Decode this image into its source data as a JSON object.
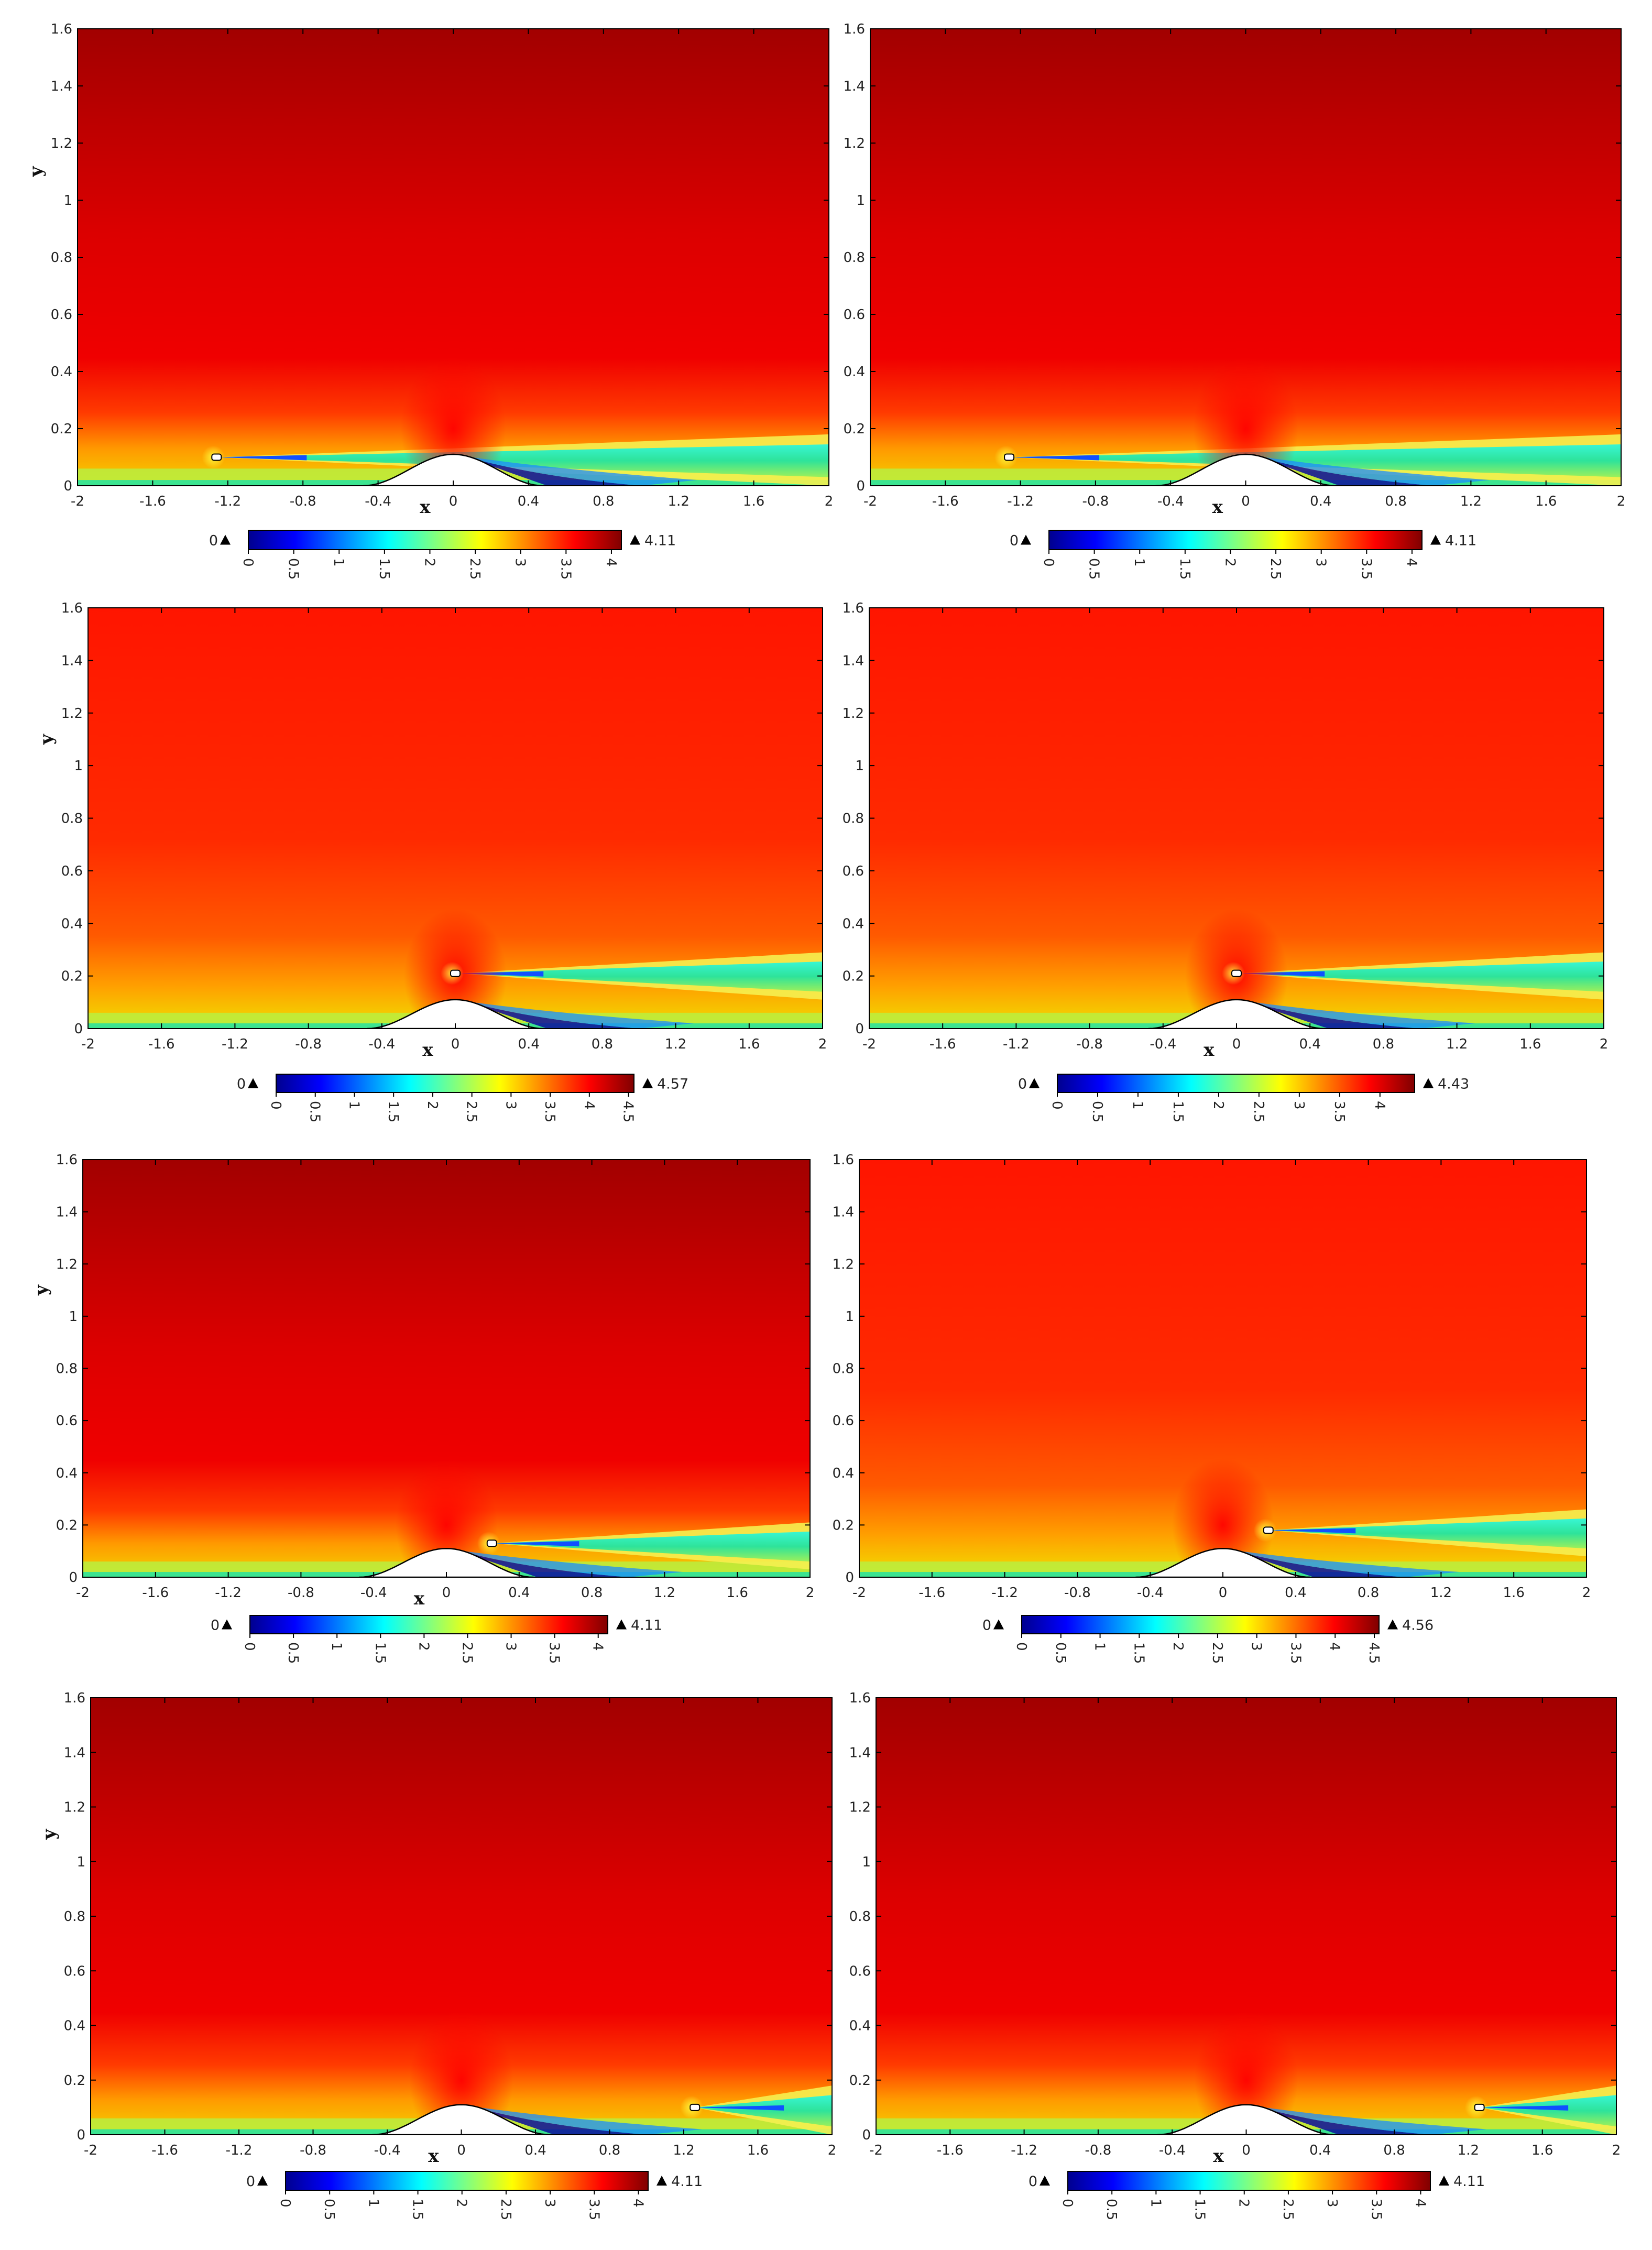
{
  "chart_data": [
    {
      "type": "heatmap",
      "xlim": [
        -2,
        2
      ],
      "ylim": [
        0,
        1.6
      ],
      "xticks": [
        "-2",
        "-1.6",
        "-1.2",
        "-0.8",
        "-0.4",
        "0",
        "0.4",
        "0.8",
        "1.2",
        "1.6",
        "2"
      ],
      "yticks": [
        "0",
        "0.2",
        "0.4",
        "0.6",
        "0.8",
        "1",
        "1.2",
        "1.4",
        "1.6"
      ],
      "xlabel": "x",
      "ylabel": "y",
      "min_label": "0",
      "max_label": "4.11",
      "colorbar_ticks": [
        "0",
        "0.5",
        "1",
        "1.5",
        "2",
        "2.5",
        "3",
        "3.5",
        "4"
      ],
      "bump_height": 0.11,
      "cylinder_x": -1.26,
      "cylinder_y": 0.1,
      "background": "dark"
    },
    {
      "type": "heatmap",
      "xlim": [
        -2,
        2
      ],
      "ylim": [
        0,
        1.6
      ],
      "xticks": [
        "-2",
        "-1.6",
        "-1.2",
        "-0.8",
        "-0.4",
        "0",
        "0.4",
        "0.8",
        "1.2",
        "1.6",
        "2"
      ],
      "yticks": [
        "0",
        "0.2",
        "0.4",
        "0.6",
        "0.8",
        "1",
        "1.2",
        "1.4",
        "1.6"
      ],
      "xlabel": "x",
      "ylabel": "",
      "min_label": "0",
      "max_label": "4.11",
      "colorbar_ticks": [
        "0",
        "0.5",
        "1",
        "1.5",
        "2",
        "2.5",
        "3",
        "3.5",
        "4"
      ],
      "bump_height": 0.11,
      "cylinder_x": -1.26,
      "cylinder_y": 0.1,
      "background": "dark"
    },
    {
      "type": "heatmap",
      "xlim": [
        -2,
        2
      ],
      "ylim": [
        0,
        1.6
      ],
      "xticks": [
        "-2",
        "-1.6",
        "-1.2",
        "-0.8",
        "-0.4",
        "0",
        "0.4",
        "0.8",
        "1.2",
        "1.6",
        "2"
      ],
      "yticks": [
        "0",
        "0.2",
        "0.4",
        "0.6",
        "0.8",
        "1",
        "1.2",
        "1.4",
        "1.6"
      ],
      "xlabel": "x",
      "ylabel": "y",
      "min_label": "0",
      "max_label": "4.57",
      "colorbar_ticks": [
        "0",
        "0.5",
        "1",
        "1.5",
        "2",
        "2.5",
        "3",
        "3.5",
        "4",
        "4.5"
      ],
      "bump_height": 0.11,
      "cylinder_x": 0.0,
      "cylinder_y": 0.21,
      "background": "bright"
    },
    {
      "type": "heatmap",
      "xlim": [
        -2,
        2
      ],
      "ylim": [
        0,
        1.6
      ],
      "xticks": [
        "-2",
        "-1.6",
        "-1.2",
        "-0.8",
        "-0.4",
        "0",
        "0.4",
        "0.8",
        "1.2",
        "1.6",
        "2"
      ],
      "yticks": [
        "0",
        "0.2",
        "0.4",
        "0.6",
        "0.8",
        "1",
        "1.2",
        "1.4",
        "1.6"
      ],
      "xlabel": "x",
      "ylabel": "",
      "min_label": "0",
      "max_label": "4.43",
      "colorbar_ticks": [
        "0",
        "0.5",
        "1",
        "1.5",
        "2",
        "2.5",
        "3",
        "3.5",
        "4"
      ],
      "bump_height": 0.11,
      "cylinder_x": 0.0,
      "cylinder_y": 0.21,
      "background": "bright"
    },
    {
      "type": "heatmap",
      "xlim": [
        -2,
        2
      ],
      "ylim": [
        0,
        1.6
      ],
      "xticks": [
        "-2",
        "-1.6",
        "-1.2",
        "-0.8",
        "-0.4",
        "0",
        "0.4",
        "0.8",
        "1.2",
        "1.6",
        "2"
      ],
      "yticks": [
        "0",
        "0.2",
        "0.4",
        "0.6",
        "0.8",
        "1",
        "1.2",
        "1.4",
        "1.6"
      ],
      "xlabel": "x",
      "ylabel": "y",
      "min_label": "0",
      "max_label": "4.11",
      "colorbar_ticks": [
        "0",
        "0.5",
        "1",
        "1.5",
        "2",
        "2.5",
        "3",
        "3.5",
        "4"
      ],
      "bump_height": 0.11,
      "cylinder_x": 0.25,
      "cylinder_y": 0.13,
      "background": "dark"
    },
    {
      "type": "heatmap",
      "xlim": [
        -2,
        2
      ],
      "ylim": [
        0,
        1.6
      ],
      "xticks": [
        "-2",
        "-1.6",
        "-1.2",
        "-0.8",
        "-0.4",
        "0",
        "0.4",
        "0.8",
        "1.2",
        "1.6",
        "2"
      ],
      "yticks": [
        "0",
        "0.2",
        "0.4",
        "0.6",
        "0.8",
        "1",
        "1.2",
        "1.4",
        "1.6"
      ],
      "xlabel": "",
      "ylabel": "",
      "min_label": "0",
      "max_label": "4.56",
      "colorbar_ticks": [
        "0",
        "0.5",
        "1",
        "1.5",
        "2",
        "2.5",
        "3",
        "3.5",
        "4",
        "4.5"
      ],
      "bump_height": 0.11,
      "cylinder_x": 0.25,
      "cylinder_y": 0.18,
      "background": "bright"
    },
    {
      "type": "heatmap",
      "xlim": [
        -2,
        2
      ],
      "ylim": [
        0,
        1.6
      ],
      "xticks": [
        "-2",
        "-1.6",
        "-1.2",
        "-0.8",
        "-0.4",
        "0",
        "0.4",
        "0.8",
        "1.2",
        "1.6",
        "2"
      ],
      "yticks": [
        "0",
        "0.2",
        "0.4",
        "0.6",
        "0.8",
        "1",
        "1.2",
        "1.4",
        "1.6"
      ],
      "xlabel": "x",
      "ylabel": "y",
      "min_label": "0",
      "max_label": "4.11",
      "colorbar_ticks": [
        "0",
        "0.5",
        "1",
        "1.5",
        "2",
        "2.5",
        "3",
        "3.5",
        "4"
      ],
      "bump_height": 0.11,
      "cylinder_x": 1.26,
      "cylinder_y": 0.1,
      "background": "dark"
    },
    {
      "type": "heatmap",
      "xlim": [
        -2,
        2
      ],
      "ylim": [
        0,
        1.6
      ],
      "xticks": [
        "-2",
        "-1.6",
        "-1.2",
        "-0.8",
        "-0.4",
        "0",
        "0.4",
        "0.8",
        "1.2",
        "1.6",
        "2"
      ],
      "yticks": [
        "0",
        "0.2",
        "0.4",
        "0.6",
        "0.8",
        "1",
        "1.2",
        "1.4",
        "1.6"
      ],
      "xlabel": "x",
      "ylabel": "",
      "min_label": "0",
      "max_label": "4.11",
      "colorbar_ticks": [
        "0",
        "0.5",
        "1",
        "1.5",
        "2",
        "2.5",
        "3",
        "3.5",
        "4"
      ],
      "bump_height": 0.11,
      "cylinder_x": 1.26,
      "cylinder_y": 0.1,
      "background": "dark"
    }
  ],
  "colors": {
    "jet": [
      "#00008f",
      "#0000ff",
      "#0080ff",
      "#00ffff",
      "#80ff80",
      "#ffff00",
      "#ff8000",
      "#ff0000",
      "#800000"
    ],
    "dark_top": "#a20000",
    "mid_red": "#f00000",
    "bright_top": "#ff1500",
    "wake_green": "#2ee39a",
    "wake_cyan": "#38f6d4",
    "near_yellow": "#e8f23a",
    "dark_blue": "#0a0a9c",
    "bump_fill": "#ffffff",
    "axis": "#000000"
  }
}
